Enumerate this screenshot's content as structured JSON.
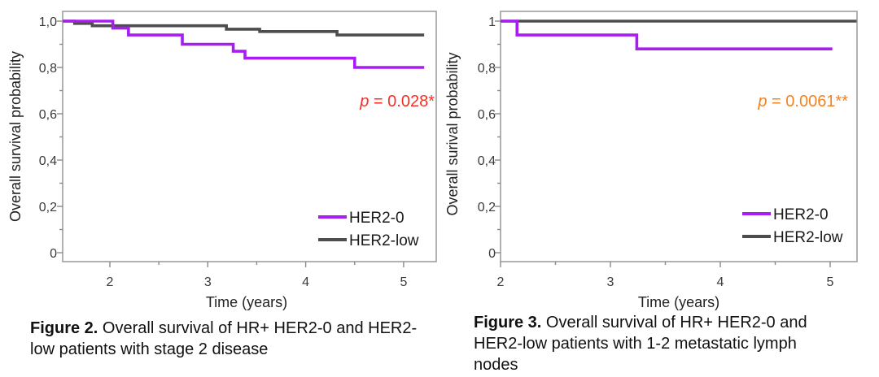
{
  "page": {
    "background": "#ffffff"
  },
  "colors": {
    "her2_0": "#aa1df2",
    "her2_low": "#4d4d4d",
    "p_left": "#fb2d26",
    "p_right": "#f5821f",
    "frame": "#9e9e9e"
  },
  "chart_data": [
    {
      "type": "line",
      "step": true,
      "title": "",
      "xlabel": "Time (years)",
      "ylabel": "Overall survival probability",
      "xlim": [
        1.52,
        5.36
      ],
      "ylim": [
        0,
        1.04
      ],
      "grid": false,
      "legend_position": "inside bottom-right",
      "x_ticks": [
        {
          "v": 2,
          "label": "2"
        },
        {
          "v": 3,
          "label": "3"
        },
        {
          "v": 4,
          "label": "4"
        },
        {
          "v": 5,
          "label": "5"
        }
      ],
      "x_minor_ticks": [
        2.5,
        3.5,
        4.5
      ],
      "y_ticks": [
        {
          "v": 1.0,
          "label": "1,0"
        },
        {
          "v": 0.8,
          "label": "0,8"
        },
        {
          "v": 0.6,
          "label": "0,6"
        },
        {
          "v": 0.4,
          "label": "0,4"
        },
        {
          "v": 0.2,
          "label": "0,2"
        },
        {
          "v": 0.0,
          "label": "0"
        }
      ],
      "y_minor_ticks": [
        0.9,
        0.7,
        0.5,
        0.3,
        0.1
      ],
      "series": [
        {
          "name": "HER2-0",
          "color": "#aa1df2",
          "points": [
            [
              1.52,
              1.0
            ],
            [
              2.03,
              0.97
            ],
            [
              2.19,
              0.94
            ],
            [
              2.74,
              0.9
            ],
            [
              3.26,
              0.87
            ],
            [
              3.38,
              0.84
            ],
            [
              4.5,
              0.8
            ]
          ],
          "end": 5.21
        },
        {
          "name": "HER2-low",
          "color": "#4d4d4d",
          "points": [
            [
              1.52,
              1.0
            ],
            [
              1.64,
              0.99
            ],
            [
              1.82,
              0.98
            ],
            [
              3.19,
              0.965
            ],
            [
              3.53,
              0.955
            ],
            [
              4.32,
              0.94
            ]
          ],
          "end": 5.21
        }
      ],
      "p_value": {
        "p": "p",
        "rest": " = 0.028*",
        "color": "#fb2d26"
      },
      "caption": {
        "bold": "Figure 2.",
        "rest": " Overall survival of HR+ HER2-0 and HER2-low patients with stage 2 disease"
      }
    },
    {
      "type": "line",
      "step": true,
      "title": "",
      "xlabel": "Time (years)",
      "ylabel": "Overall surival probability",
      "xlim": [
        2.0,
        5.24
      ],
      "ylim": [
        0,
        1.04
      ],
      "grid": false,
      "legend_position": "inside bottom-right",
      "x_ticks": [
        {
          "v": 2,
          "label": "2"
        },
        {
          "v": 3,
          "label": "3"
        },
        {
          "v": 4,
          "label": "4"
        },
        {
          "v": 5,
          "label": "5"
        }
      ],
      "x_minor_ticks": [
        2.5,
        3.5,
        4.5
      ],
      "y_ticks": [
        {
          "v": 1.0,
          "label": "1"
        },
        {
          "v": 0.8,
          "label": "0,8"
        },
        {
          "v": 0.6,
          "label": "0,6"
        },
        {
          "v": 0.4,
          "label": "0,4"
        },
        {
          "v": 0.2,
          "label": "0,2"
        },
        {
          "v": 0.0,
          "label": "0"
        }
      ],
      "y_minor_ticks": [
        0.9,
        0.7,
        0.5,
        0.3,
        0.1
      ],
      "series": [
        {
          "name": "HER2-0",
          "color": "#aa1df2",
          "points": [
            [
              2.0,
              1.0
            ],
            [
              2.15,
              0.94
            ],
            [
              3.24,
              0.88
            ]
          ],
          "end": 5.02
        },
        {
          "name": "HER2-low",
          "color": "#4d4d4d",
          "points": [
            [
              2.0,
              1.0
            ]
          ],
          "end": 5.24
        }
      ],
      "p_value": {
        "p": "p",
        "rest": " = 0.0061**",
        "color": "#f5821f"
      },
      "caption": {
        "bold": "Figure 3.",
        "rest": " Overall survival of HR+ HER2-0 and HER2-low patients with 1-2 metastatic lymph nodes"
      }
    }
  ]
}
